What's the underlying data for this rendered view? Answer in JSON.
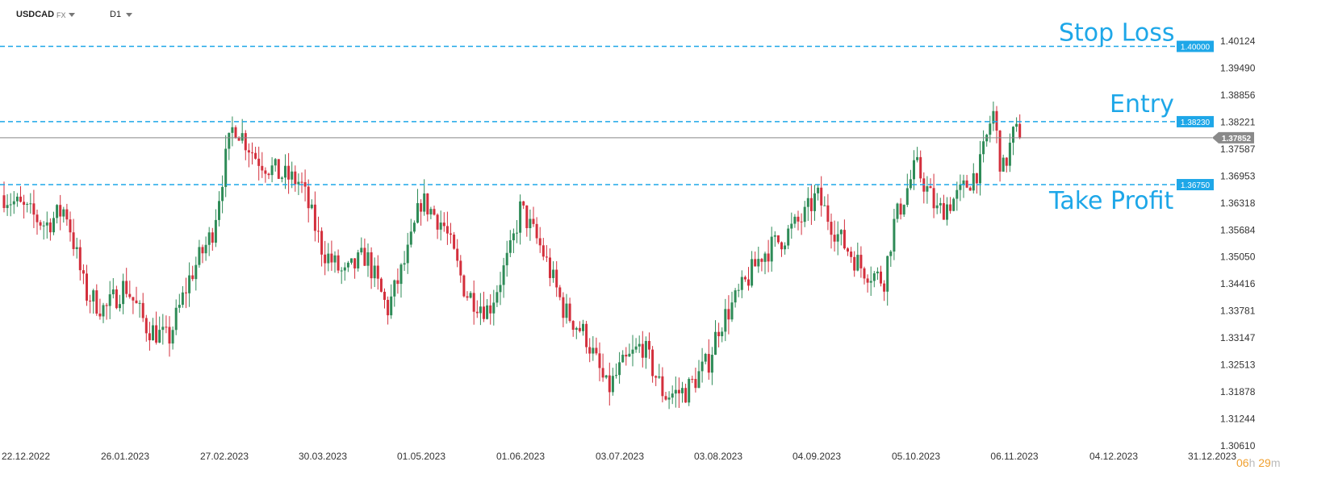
{
  "toolbar": {
    "symbol": "USDCAD",
    "market": "FX",
    "timeframe": "D1"
  },
  "countdown": {
    "hours": "06",
    "hours_unit": "h",
    "minutes": "29",
    "minutes_unit": "m"
  },
  "chart_data": {
    "type": "candlestick",
    "title": "",
    "xlabel": "",
    "ylabel": "",
    "ylim": [
      1.3061,
      1.40124
    ],
    "y_ticks": [
      "1.40124",
      "1.39490",
      "1.38856",
      "1.38221",
      "1.37587",
      "1.36953",
      "1.36318",
      "1.35684",
      "1.35050",
      "1.34416",
      "1.33781",
      "1.33147",
      "1.32513",
      "1.31878",
      "1.31244",
      "1.30610"
    ],
    "x_ticks": [
      "22.12.2022",
      "26.01.2023",
      "27.02.2023",
      "30.03.2023",
      "01.05.2023",
      "01.06.2023",
      "03.07.2023",
      "03.08.2023",
      "04.09.2023",
      "05.10.2023",
      "06.11.2023",
      "04.12.2023",
      "31.12.2023"
    ],
    "last_price": {
      "value": 1.37852,
      "label": "1.37852",
      "color": "#888888"
    },
    "levels": [
      {
        "name": "Stop Loss",
        "value": 1.4,
        "label": "1.40000",
        "color": "#1ea7e8"
      },
      {
        "name": "Entry",
        "value": 1.3823,
        "label": "1.38230",
        "color": "#1ea7e8"
      },
      {
        "name": "Take Profit",
        "value": 1.3675,
        "label": "1.36750",
        "color": "#1ea7e8"
      }
    ],
    "colors": {
      "up": "#2e8b57",
      "down": "#d32f3c",
      "grid": "none"
    },
    "grid": false,
    "ohlc_path": [
      {
        "date": "22.12.2022",
        "close": 1.365
      },
      {
        "date": "29.12.2022",
        "close": 1.358
      },
      {
        "date": "05.01.2023",
        "close": 1.362
      },
      {
        "date": "12.01.2023",
        "close": 1.342
      },
      {
        "date": "19.01.2023",
        "close": 1.338
      },
      {
        "date": "26.01.2023",
        "close": 1.344
      },
      {
        "date": "02.02.2023",
        "close": 1.334
      },
      {
        "date": "09.02.2023",
        "close": 1.331
      },
      {
        "date": "16.02.2023",
        "close": 1.346
      },
      {
        "date": "23.02.2023",
        "close": 1.356
      },
      {
        "date": "27.02.2023",
        "close": 1.372
      },
      {
        "date": "02.03.2023",
        "close": 1.382
      },
      {
        "date": "09.03.2023",
        "close": 1.374
      },
      {
        "date": "16.03.2023",
        "close": 1.37
      },
      {
        "date": "23.03.2023",
        "close": 1.368
      },
      {
        "date": "30.03.2023",
        "close": 1.352
      },
      {
        "date": "06.04.2023",
        "close": 1.346
      },
      {
        "date": "13.04.2023",
        "close": 1.351
      },
      {
        "date": "20.04.2023",
        "close": 1.338
      },
      {
        "date": "27.04.2023",
        "close": 1.352
      },
      {
        "date": "01.05.2023",
        "close": 1.364
      },
      {
        "date": "08.05.2023",
        "close": 1.358
      },
      {
        "date": "15.05.2023",
        "close": 1.342
      },
      {
        "date": "22.05.2023",
        "close": 1.338
      },
      {
        "date": "29.05.2023",
        "close": 1.352
      },
      {
        "date": "01.06.2023",
        "close": 1.362
      },
      {
        "date": "08.06.2023",
        "close": 1.352
      },
      {
        "date": "15.06.2023",
        "close": 1.338
      },
      {
        "date": "22.06.2023",
        "close": 1.332
      },
      {
        "date": "29.06.2023",
        "close": 1.319
      },
      {
        "date": "03.07.2023",
        "close": 1.324
      },
      {
        "date": "10.07.2023",
        "close": 1.33
      },
      {
        "date": "17.07.2023",
        "close": 1.318
      },
      {
        "date": "24.07.2023",
        "close": 1.319
      },
      {
        "date": "31.07.2023",
        "close": 1.326
      },
      {
        "date": "03.08.2023",
        "close": 1.334
      },
      {
        "date": "10.08.2023",
        "close": 1.342
      },
      {
        "date": "17.08.2023",
        "close": 1.351
      },
      {
        "date": "24.08.2023",
        "close": 1.355
      },
      {
        "date": "31.08.2023",
        "close": 1.36
      },
      {
        "date": "04.09.2023",
        "close": 1.365
      },
      {
        "date": "11.09.2023",
        "close": 1.355
      },
      {
        "date": "18.09.2023",
        "close": 1.348
      },
      {
        "date": "25.09.2023",
        "close": 1.345
      },
      {
        "date": "28.09.2023",
        "close": 1.358
      },
      {
        "date": "05.10.2023",
        "close": 1.372
      },
      {
        "date": "12.10.2023",
        "close": 1.361
      },
      {
        "date": "19.10.2023",
        "close": 1.365
      },
      {
        "date": "26.10.2023",
        "close": 1.372
      },
      {
        "date": "30.10.2023",
        "close": 1.385
      },
      {
        "date": "02.11.2023",
        "close": 1.37
      },
      {
        "date": "06.11.2023",
        "close": 1.38
      },
      {
        "date": "08.11.2023",
        "close": 1.37852
      }
    ]
  }
}
